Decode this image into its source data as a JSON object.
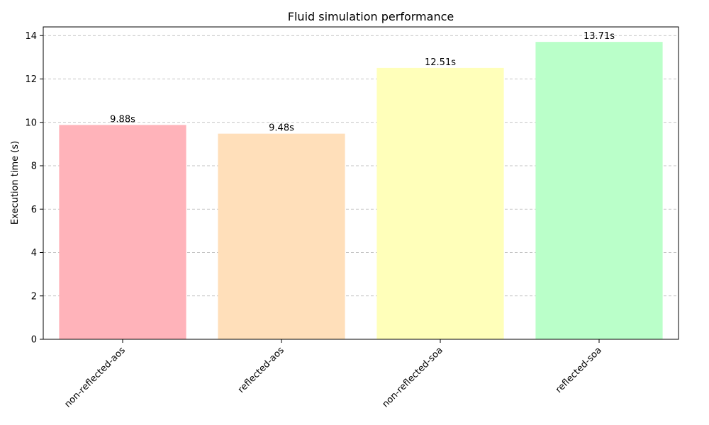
{
  "chart_data": {
    "type": "bar",
    "title": "Fluid simulation performance",
    "xlabel": "",
    "ylabel": "Execution time (s)",
    "categories": [
      "non-reflected-aos",
      "reflected-aos",
      "non-reflected-soa",
      "reflected-soa"
    ],
    "values": [
      9.88,
      9.48,
      12.51,
      13.71
    ],
    "data_labels": [
      "9.88s",
      "9.48s",
      "12.51s",
      "13.71s"
    ],
    "colors": [
      "#ffb3ba",
      "#ffdfba",
      "#ffffba",
      "#baffc9"
    ],
    "ylim": [
      0,
      14.4
    ],
    "yticks": [
      0,
      2,
      4,
      6,
      8,
      10,
      12,
      14
    ],
    "grid": true,
    "legend": "none"
  }
}
